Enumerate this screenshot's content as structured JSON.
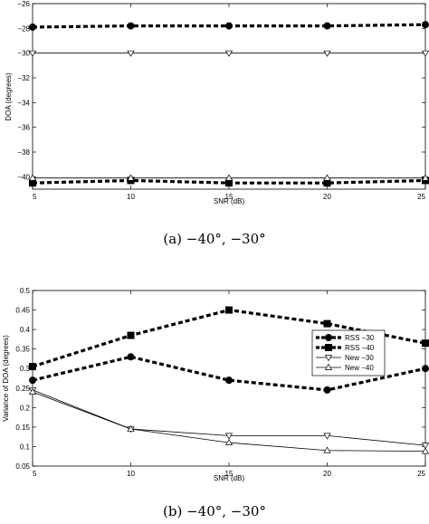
{
  "chart_data": [
    {
      "type": "line",
      "caption": "(a) −40°, −30°",
      "xlabel": "SNR (dB)",
      "ylabel": "DOA (degrees)",
      "x": [
        5,
        10,
        15,
        20,
        25
      ],
      "xlim": [
        5,
        25
      ],
      "ylim": [
        -41,
        -26
      ],
      "xticks": [
        5,
        10,
        15,
        20,
        25
      ],
      "yticks": [
        -26,
        -28,
        -30,
        -32,
        -34,
        -36,
        -38,
        -40
      ],
      "grid": false,
      "series": [
        {
          "style": "dashed-circle",
          "values": [
            -27.9,
            -27.8,
            -27.8,
            -27.8,
            -27.7
          ]
        },
        {
          "style": "thin-triangle-down",
          "values": [
            -30.0,
            -30.0,
            -30.0,
            -30.0,
            -30.0
          ]
        },
        {
          "style": "dashed-square",
          "values": [
            -40.5,
            -40.3,
            -40.5,
            -40.5,
            -40.3
          ]
        },
        {
          "style": "thin-triangle-up",
          "values": [
            -40.1,
            -40.1,
            -40.1,
            -40.1,
            -40.1
          ]
        }
      ]
    },
    {
      "type": "line",
      "caption": "(b) −40°, −30°",
      "xlabel": "SNR (dB)",
      "ylabel": "Variance of DOA (degrees)",
      "x": [
        5,
        10,
        15,
        20,
        25
      ],
      "xlim": [
        5,
        25
      ],
      "ylim": [
        0.05,
        0.5
      ],
      "xticks": [
        5,
        10,
        15,
        20,
        25
      ],
      "yticks": [
        0.05,
        0.1,
        0.15,
        0.2,
        0.25,
        0.3,
        0.35,
        0.4,
        0.45,
        0.5
      ],
      "grid": false,
      "legend_position": "center-right",
      "series": [
        {
          "name": "RSS −30",
          "style": "dashed-circle",
          "values": [
            0.27,
            0.33,
            0.27,
            0.245,
            0.3
          ]
        },
        {
          "name": "RSS −40",
          "style": "dashed-square",
          "values": [
            0.305,
            0.385,
            0.45,
            0.415,
            0.365
          ]
        },
        {
          "name": "New −30",
          "style": "thin-triangle-down",
          "values": [
            0.245,
            0.145,
            0.128,
            0.128,
            0.103
          ]
        },
        {
          "name": "New −40",
          "style": "thin-triangle-up",
          "values": [
            0.24,
            0.145,
            0.11,
            0.09,
            0.088
          ]
        }
      ]
    }
  ]
}
